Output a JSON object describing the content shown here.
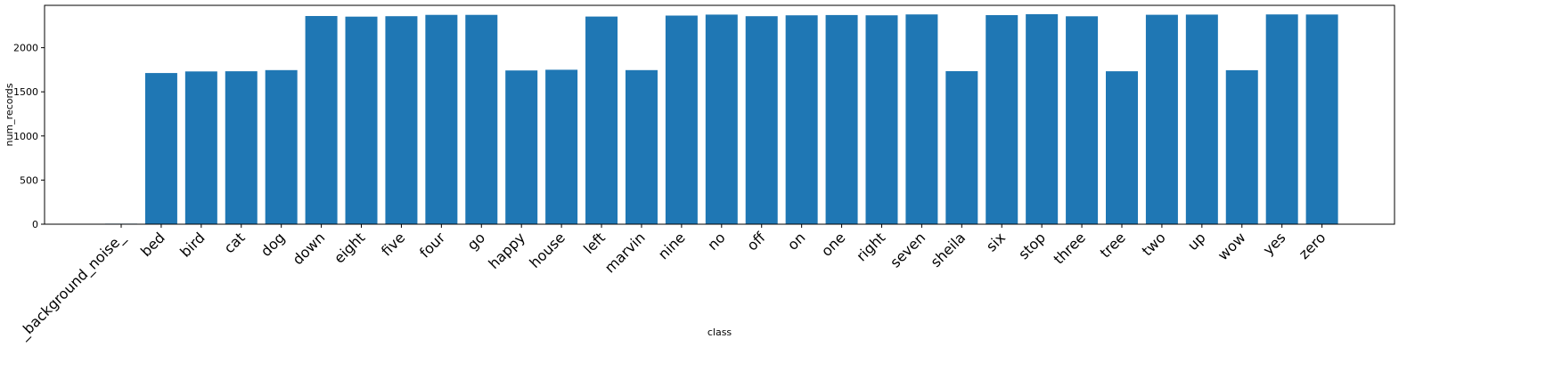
{
  "chart_data": {
    "type": "bar",
    "title": "",
    "xlabel": "class",
    "ylabel": "num_records",
    "ylim": [
      0,
      2480
    ],
    "yticks": [
      0,
      500,
      1000,
      1500,
      2000
    ],
    "grid": false,
    "bar_color": "#1f77b4",
    "categories": [
      "_background_noise_",
      "bed",
      "bird",
      "cat",
      "dog",
      "down",
      "eight",
      "five",
      "four",
      "go",
      "happy",
      "house",
      "left",
      "marvin",
      "nine",
      "no",
      "off",
      "on",
      "one",
      "right",
      "seven",
      "sheila",
      "six",
      "stop",
      "three",
      "tree",
      "two",
      "up",
      "wow",
      "yes",
      "zero"
    ],
    "values": [
      6,
      1713,
      1731,
      1733,
      1746,
      2359,
      2352,
      2357,
      2372,
      2372,
      1742,
      1750,
      2353,
      1746,
      2364,
      2375,
      2357,
      2367,
      2370,
      2367,
      2377,
      1734,
      2369,
      2380,
      2356,
      1733,
      2373,
      2375,
      1745,
      2377,
      2376
    ]
  }
}
